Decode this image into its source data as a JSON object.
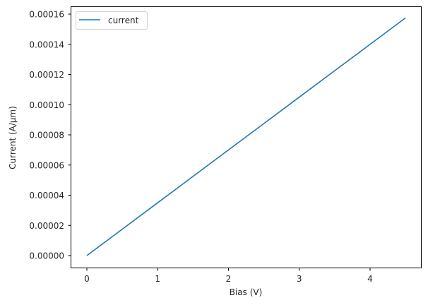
{
  "chart_data": {
    "type": "line",
    "title": "",
    "xlabel": "Bias (V)",
    "ylabel": "Current (A/μm)",
    "xlim": [
      -0.225,
      4.725
    ],
    "ylim": [
      -7.9e-06,
      0.0001655
    ],
    "x_ticks": [
      "0",
      "1",
      "2",
      "3",
      "4"
    ],
    "y_ticks": [
      "0.00000",
      "0.00002",
      "0.00004",
      "0.00006",
      "0.00008",
      "0.00010",
      "0.00012",
      "0.00014",
      "0.00016"
    ],
    "grid": false,
    "legend_position": "upper left",
    "series": [
      {
        "name": "current",
        "color": "#1f77b4",
        "x": [
          0,
          0.5,
          1,
          1.5,
          2,
          2.5,
          3,
          3.5,
          4,
          4.5
        ],
        "values": [
          0,
          1.75e-05,
          3.5e-05,
          5.25e-05,
          7e-05,
          8.75e-05,
          0.000105,
          0.0001225,
          0.00014,
          0.0001575
        ]
      }
    ]
  }
}
